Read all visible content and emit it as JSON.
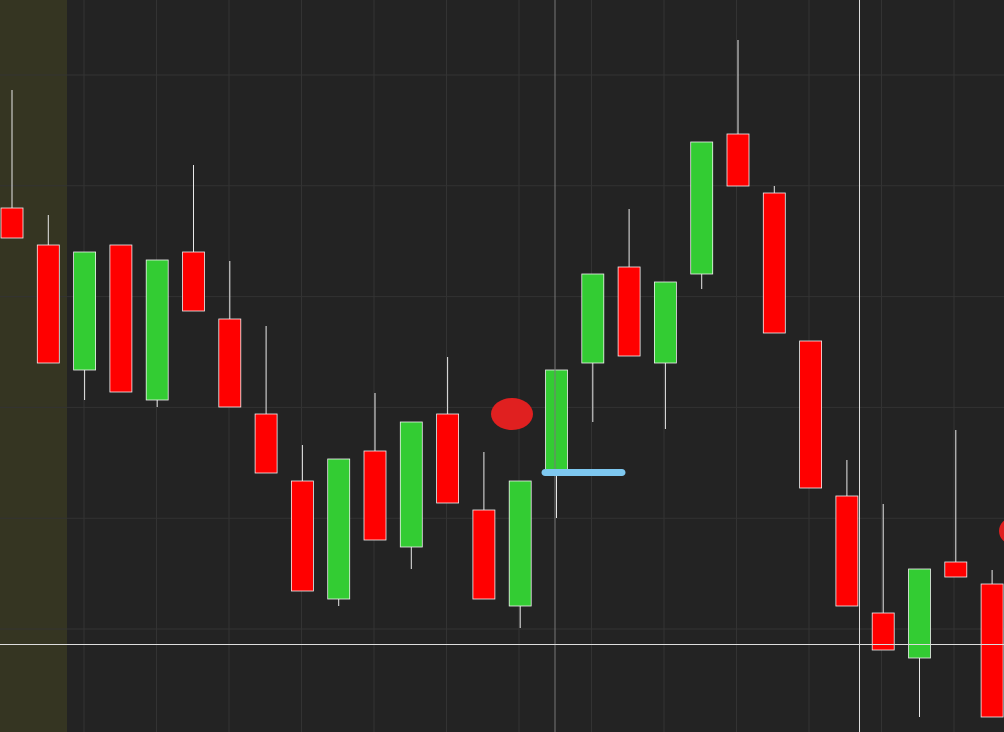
{
  "chart_data": {
    "type": "candlestick",
    "open": [
      524,
      487,
      362,
      487,
      332,
      480,
      413,
      318,
      251,
      133,
      281,
      185,
      318,
      222,
      126,
      262,
      369,
      465,
      369,
      458,
      598,
      539,
      391,
      236,
      119,
      74,
      170,
      148
    ],
    "high": [
      642,
      517,
      480,
      487,
      472,
      567,
      471,
      406,
      287,
      273,
      339,
      310,
      375,
      280,
      251,
      362,
      458,
      523,
      450,
      590,
      692,
      546,
      391,
      272,
      228,
      163,
      302,
      162
    ],
    "low": [
      494,
      369,
      332,
      340,
      325,
      421,
      325,
      259,
      141,
      126,
      192,
      163,
      229,
      133,
      104,
      214,
      310,
      376,
      303,
      443,
      546,
      399,
      244,
      126,
      82,
      15,
      155,
      15
    ],
    "close": [
      494,
      369,
      480,
      340,
      472,
      421,
      325,
      259,
      141,
      273,
      192,
      310,
      229,
      133,
      251,
      362,
      458,
      376,
      450,
      590,
      546,
      399,
      244,
      126,
      82,
      163,
      155,
      15
    ],
    "up_color": "#33cc33",
    "down_color": "#ff0000",
    "ylim": [
      0,
      732
    ]
  }
}
